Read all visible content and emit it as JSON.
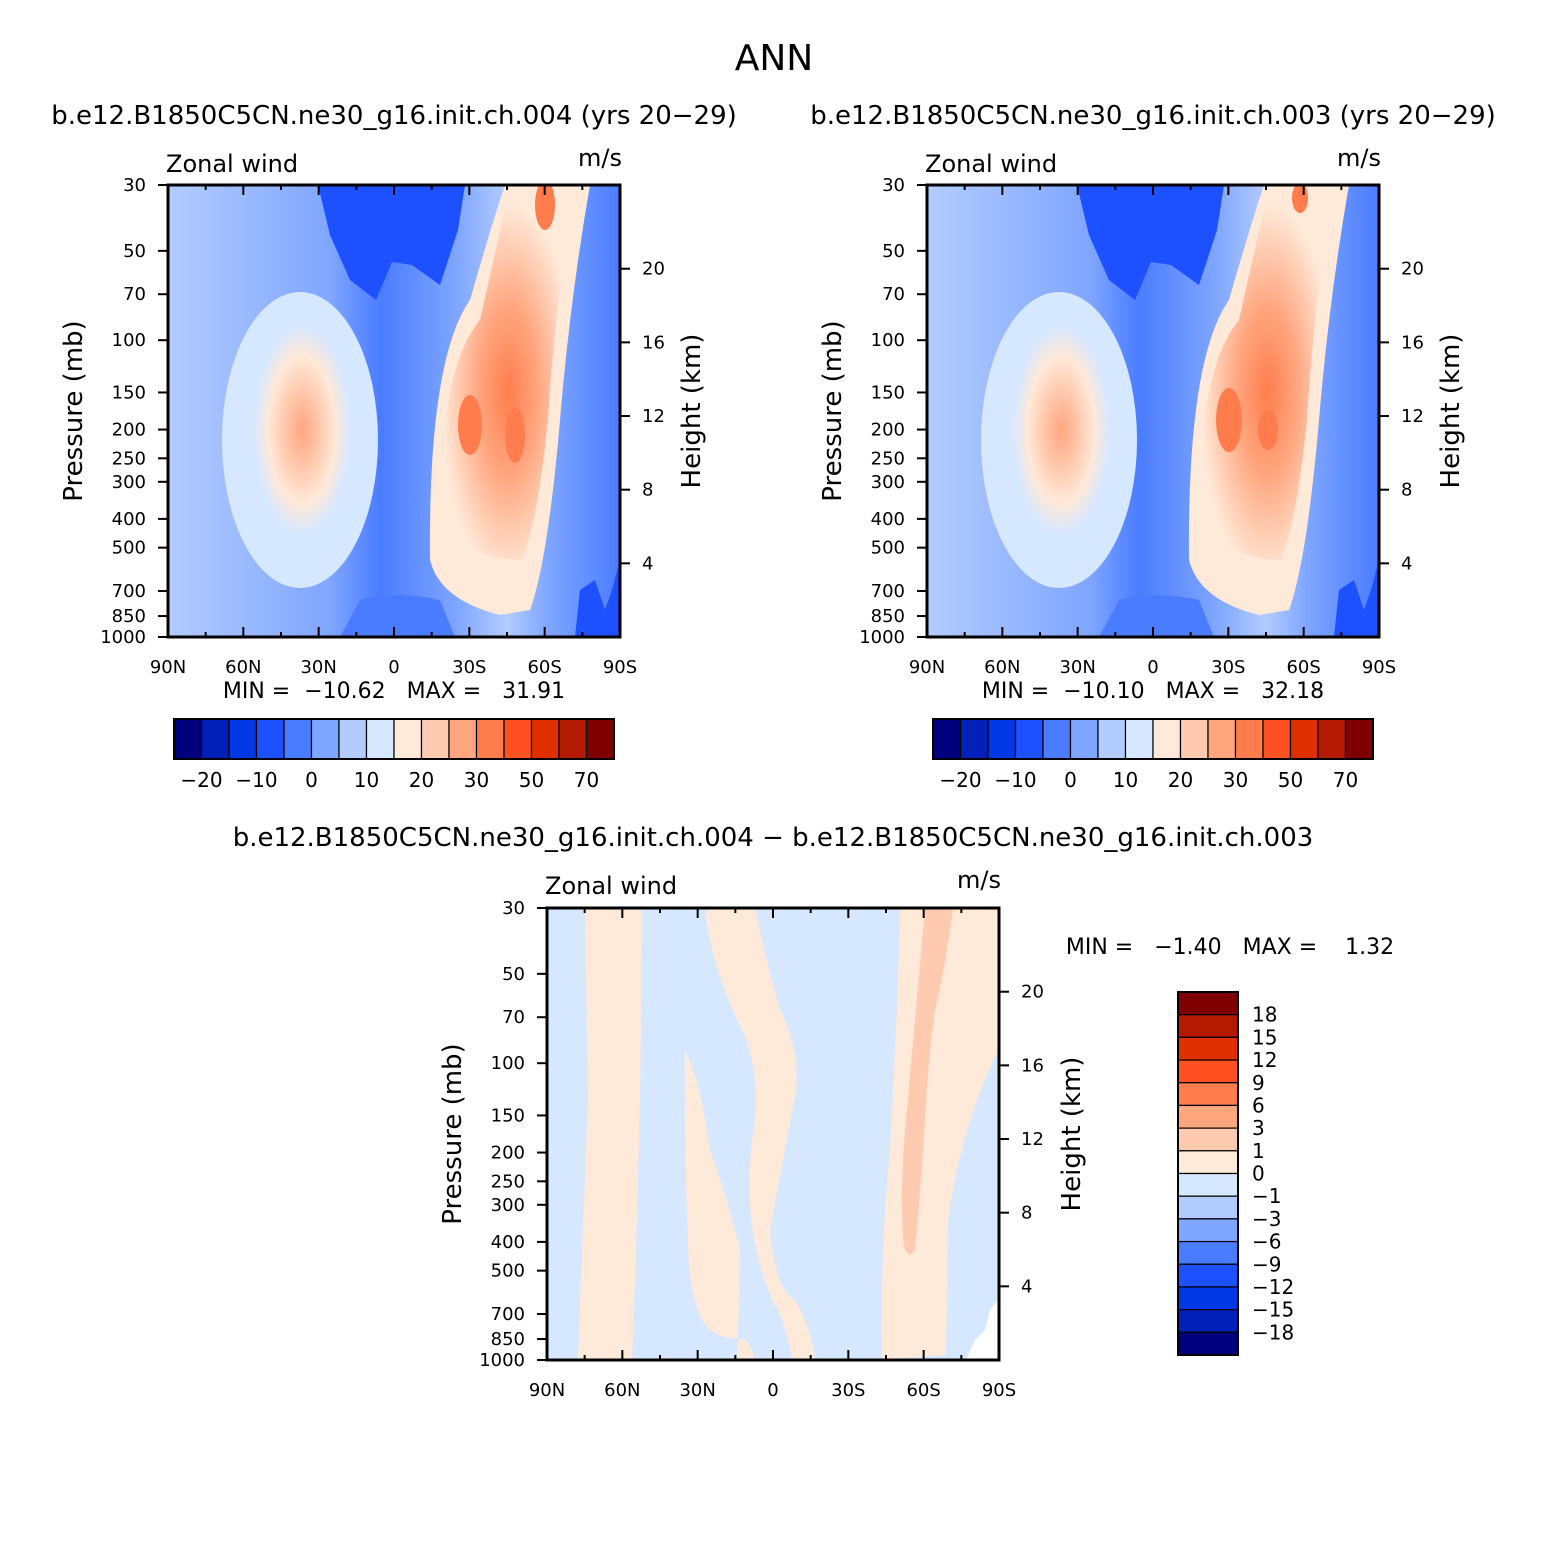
{
  "figure": {
    "title": "ANN",
    "diff_title": "b.e12.B1850C5CN.ne30_g16.init.ch.004 − b.e12.B1850C5CN.ne30_g16.init.ch.003"
  },
  "chart_data": [
    {
      "type": "heatmap",
      "title": "b.e12.B1850C5CN.ne30_g16.init.ch.004 (yrs 20−29)",
      "left_label": "Zonal wind",
      "right_label": "m/s",
      "xlabel": "",
      "ylabel": "Pressure (mb)",
      "y2label": "Height (km)",
      "x_ticks": [
        "90N",
        "60N",
        "30N",
        "0",
        "30S",
        "60S",
        "90S"
      ],
      "y_ticks": [
        "30",
        "50",
        "70",
        "100",
        "150",
        "200",
        "250",
        "300",
        "400",
        "500",
        "700",
        "850",
        "1000"
      ],
      "y2_ticks": [
        "20",
        "16",
        "12",
        "8",
        "4"
      ],
      "log_pressure_axis": true,
      "ylim": [
        1000,
        30
      ],
      "stats": "MIN =  −10.62   MAX =   31.91",
      "min": -10.62,
      "max": 31.91,
      "colorbar": {
        "orientation": "horizontal",
        "labels": [
          "−20",
          "−10",
          "0",
          "10",
          "20",
          "30",
          "50",
          "70"
        ],
        "colors": [
          "#00007f",
          "#0020b8",
          "#0038e6",
          "#1d50ff",
          "#4a7cff",
          "#7fa6ff",
          "#b3ccff",
          "#d6e8ff",
          "#ffe9d9",
          "#ffcbb0",
          "#ffa67f",
          "#ff7d4d",
          "#ff5022",
          "#e03000",
          "#b31a00",
          "#7f0000"
        ]
      }
    },
    {
      "type": "heatmap",
      "title": "b.e12.B1850C5CN.ne30_g16.init.ch.003 (yrs 20−29)",
      "left_label": "Zonal wind",
      "right_label": "m/s",
      "xlabel": "",
      "ylabel": "Pressure (mb)",
      "y2label": "Height (km)",
      "x_ticks": [
        "90N",
        "60N",
        "30N",
        "0",
        "30S",
        "60S",
        "90S"
      ],
      "y_ticks": [
        "30",
        "50",
        "70",
        "100",
        "150",
        "200",
        "250",
        "300",
        "400",
        "500",
        "700",
        "850",
        "1000"
      ],
      "y2_ticks": [
        "20",
        "16",
        "12",
        "8",
        "4"
      ],
      "log_pressure_axis": true,
      "ylim": [
        1000,
        30
      ],
      "stats": "MIN =  −10.10   MAX =   32.18",
      "min": -10.1,
      "max": 32.18,
      "colorbar": {
        "orientation": "horizontal",
        "labels": [
          "−20",
          "−10",
          "0",
          "10",
          "20",
          "30",
          "50",
          "70"
        ],
        "colors": [
          "#00007f",
          "#0020b8",
          "#0038e6",
          "#1d50ff",
          "#4a7cff",
          "#7fa6ff",
          "#b3ccff",
          "#d6e8ff",
          "#ffe9d9",
          "#ffcbb0",
          "#ffa67f",
          "#ff7d4d",
          "#ff5022",
          "#e03000",
          "#b31a00",
          "#7f0000"
        ]
      }
    },
    {
      "type": "heatmap",
      "title": "",
      "left_label": "Zonal wind",
      "right_label": "m/s",
      "xlabel": "",
      "ylabel": "Pressure (mb)",
      "y2label": "Height (km)",
      "x_ticks": [
        "90N",
        "60N",
        "30N",
        "0",
        "30S",
        "60S",
        "90S"
      ],
      "y_ticks": [
        "30",
        "50",
        "70",
        "100",
        "150",
        "200",
        "250",
        "300",
        "400",
        "500",
        "700",
        "850",
        "1000"
      ],
      "y2_ticks": [
        "20",
        "16",
        "12",
        "8",
        "4"
      ],
      "log_pressure_axis": true,
      "ylim": [
        1000,
        30
      ],
      "stats": "MIN =   −1.40   MAX =    1.32",
      "min": -1.4,
      "max": 1.32,
      "colorbar": {
        "orientation": "vertical",
        "labels": [
          "18",
          "15",
          "12",
          "9",
          "6",
          "3",
          "1",
          "0",
          "−1",
          "−3",
          "−6",
          "−9",
          "−12",
          "−15",
          "−18"
        ],
        "colors": [
          "#7f0000",
          "#b31a00",
          "#e03000",
          "#ff5022",
          "#ff7d4d",
          "#ffa67f",
          "#ffcbb0",
          "#ffe9d9",
          "#d6e8ff",
          "#b3ccff",
          "#7fa6ff",
          "#4a7cff",
          "#1d50ff",
          "#0038e6",
          "#0020b8",
          "#00007f"
        ]
      }
    }
  ]
}
